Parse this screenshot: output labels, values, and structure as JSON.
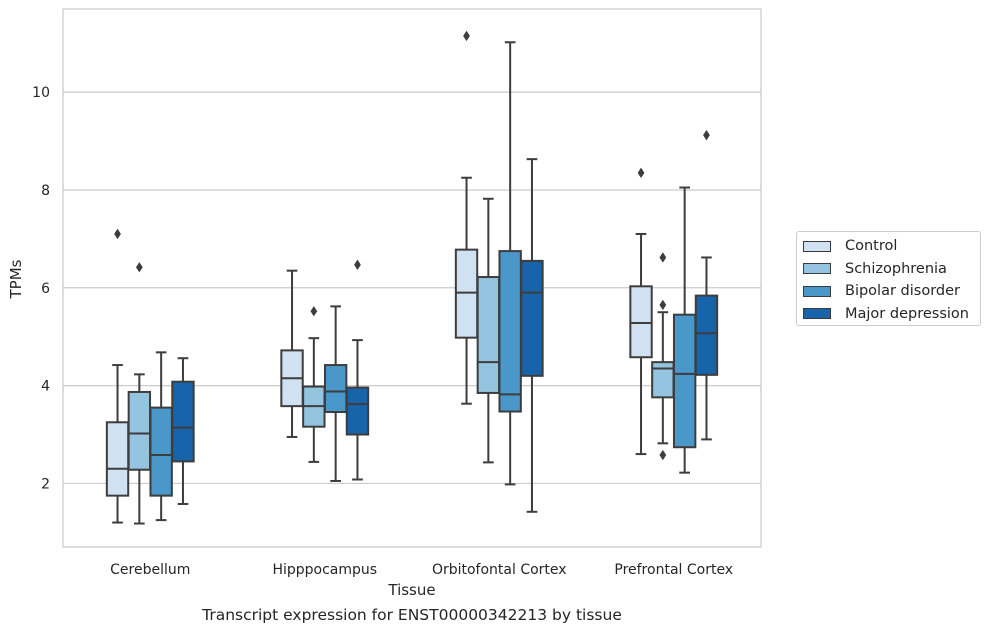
{
  "chart_data": {
    "type": "box",
    "title": "",
    "caption": "Transcript expression for ENST00000342213 by tissue",
    "xlabel": "Tissue",
    "ylabel": "TPMs",
    "ylim": [
      0.7,
      11.7
    ],
    "yticks": [
      2,
      4,
      6,
      8,
      10
    ],
    "grid": true,
    "legend_position": "right",
    "categories": [
      "Cerebellum",
      "Hipppocampus",
      "Orbitofontal Cortex",
      "Prefrontal Cortex"
    ],
    "series": [
      {
        "name": "Control",
        "color": "#d0e1f2",
        "boxes": [
          {
            "whislo": 1.2,
            "q1": 1.75,
            "med": 2.3,
            "q3": 3.25,
            "whishi": 4.42,
            "fliers": [
              7.1
            ]
          },
          {
            "whislo": 2.95,
            "q1": 3.58,
            "med": 4.15,
            "q3": 4.72,
            "whishi": 6.35,
            "fliers": []
          },
          {
            "whislo": 3.63,
            "q1": 4.98,
            "med": 5.9,
            "q3": 6.78,
            "whishi": 8.25,
            "fliers": [
              11.15
            ]
          },
          {
            "whislo": 2.6,
            "q1": 4.58,
            "med": 5.28,
            "q3": 6.03,
            "whishi": 7.1,
            "fliers": [
              8.35
            ]
          }
        ]
      },
      {
        "name": "Schizophrenia",
        "color": "#94c4df",
        "boxes": [
          {
            "whislo": 1.18,
            "q1": 2.28,
            "med": 3.02,
            "q3": 3.87,
            "whishi": 4.23,
            "fliers": [
              6.42
            ]
          },
          {
            "whislo": 2.44,
            "q1": 3.16,
            "med": 3.58,
            "q3": 3.98,
            "whishi": 4.97,
            "fliers": [
              5.52
            ]
          },
          {
            "whislo": 2.43,
            "q1": 3.85,
            "med": 4.48,
            "q3": 6.22,
            "whishi": 7.82,
            "fliers": []
          },
          {
            "whislo": 2.82,
            "q1": 3.76,
            "med": 4.35,
            "q3": 4.48,
            "whishi": 5.5,
            "fliers": [
              2.58,
              5.65,
              6.62
            ]
          }
        ]
      },
      {
        "name": "Bipolar disorder",
        "color": "#4a98c9",
        "boxes": [
          {
            "whislo": 1.25,
            "q1": 1.75,
            "med": 2.58,
            "q3": 3.55,
            "whishi": 4.68,
            "fliers": []
          },
          {
            "whislo": 2.05,
            "q1": 3.46,
            "med": 3.88,
            "q3": 4.42,
            "whishi": 5.62,
            "fliers": []
          },
          {
            "whislo": 1.98,
            "q1": 3.47,
            "med": 3.82,
            "q3": 6.75,
            "whishi": 11.02,
            "fliers": []
          },
          {
            "whislo": 2.22,
            "q1": 2.74,
            "med": 4.24,
            "q3": 5.45,
            "whishi": 8.05,
            "fliers": []
          }
        ]
      },
      {
        "name": "Major depression",
        "color": "#1764ab",
        "boxes": [
          {
            "whislo": 1.58,
            "q1": 2.45,
            "med": 3.14,
            "q3": 4.08,
            "whishi": 4.56,
            "fliers": []
          },
          {
            "whislo": 2.08,
            "q1": 3.0,
            "med": 3.62,
            "q3": 3.96,
            "whishi": 4.93,
            "fliers": [
              6.47
            ]
          },
          {
            "whislo": 1.42,
            "q1": 4.2,
            "med": 5.9,
            "q3": 6.55,
            "whishi": 8.63,
            "fliers": []
          },
          {
            "whislo": 2.9,
            "q1": 4.22,
            "med": 5.07,
            "q3": 5.84,
            "whishi": 6.62,
            "fliers": [
              9.12
            ]
          }
        ]
      }
    ]
  }
}
